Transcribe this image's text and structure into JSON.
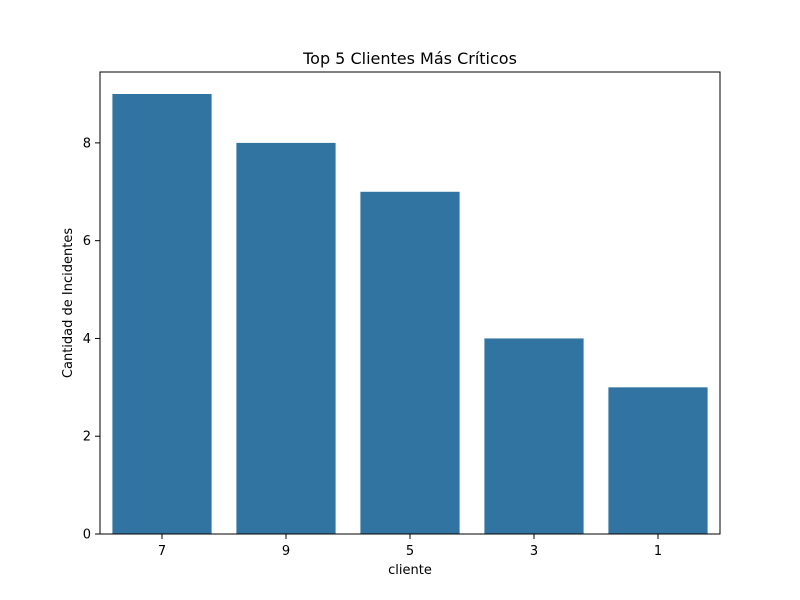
{
  "chart_data": {
    "type": "bar",
    "title": "Top 5 Clientes Más Críticos",
    "xlabel": "cliente",
    "ylabel": "Cantidad de Incidentes",
    "categories": [
      "7",
      "9",
      "5",
      "3",
      "1"
    ],
    "values": [
      9,
      8,
      7,
      4,
      3
    ],
    "ylim": [
      0,
      9.45
    ],
    "yticks": [
      0,
      2,
      4,
      6,
      8
    ],
    "grid": false,
    "legend": "none",
    "bar_color": "#3274a1"
  }
}
